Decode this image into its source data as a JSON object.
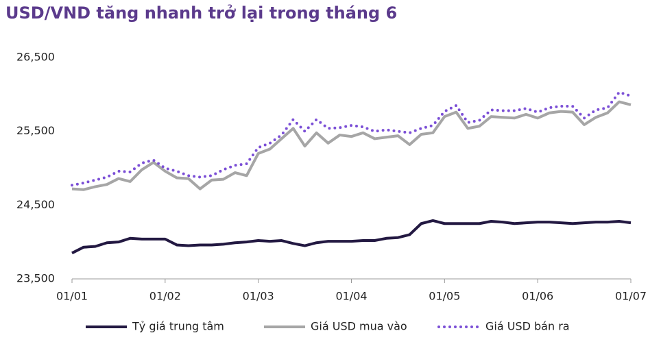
{
  "chart_data": {
    "type": "line",
    "title": "USD/VND tăng nhanh trở lại trong tháng 6",
    "categories": [
      "01/01",
      null,
      null,
      null,
      null,
      null,
      null,
      null,
      "01/02",
      null,
      null,
      null,
      null,
      null,
      null,
      null,
      "01/03",
      null,
      null,
      null,
      null,
      null,
      null,
      null,
      "01/04",
      null,
      null,
      null,
      null,
      null,
      null,
      null,
      "01/05",
      null,
      null,
      null,
      null,
      null,
      null,
      null,
      "01/06",
      null,
      null,
      null,
      null,
      null,
      null,
      null,
      "01/07"
    ],
    "series": [
      {
        "name": "Tỷ giá trung tâm",
        "color": "#231942",
        "style": "solid",
        "values": [
          23850,
          23930,
          23940,
          23990,
          24000,
          24050,
          24040,
          24040,
          24040,
          23960,
          23950,
          23960,
          23960,
          23970,
          23990,
          24000,
          24020,
          24010,
          24020,
          23980,
          23950,
          23990,
          24010,
          24010,
          24010,
          24020,
          24020,
          24050,
          24060,
          24100,
          24250,
          24290,
          24250,
          24250,
          24250,
          24250,
          24280,
          24270,
          24250,
          24260,
          24270,
          24270,
          24260,
          24250,
          24260,
          24270,
          24270,
          24280,
          24260
        ]
      },
      {
        "name": "Giá USD mua vào",
        "color": "#a6a6a6",
        "style": "solid",
        "values": [
          24720,
          24710,
          24750,
          24780,
          24860,
          24820,
          24980,
          25080,
          24960,
          24870,
          24860,
          24720,
          24840,
          24850,
          24940,
          24900,
          25200,
          25260,
          25400,
          25540,
          25300,
          25480,
          25340,
          25450,
          25430,
          25480,
          25400,
          25420,
          25440,
          25320,
          25460,
          25480,
          25700,
          25760,
          25540,
          25570,
          25700,
          25690,
          25680,
          25730,
          25680,
          25750,
          25770,
          25760,
          25590,
          25690,
          25750,
          25900,
          25860
        ]
      },
      {
        "name": "Giá USD bán ra",
        "color": "#7b4fd6",
        "style": "dotted",
        "values": [
          24770,
          24800,
          24840,
          24880,
          24960,
          24950,
          25070,
          25110,
          25000,
          24960,
          24900,
          24880,
          24900,
          24980,
          25040,
          25060,
          25280,
          25340,
          25450,
          25660,
          25500,
          25660,
          25540,
          25550,
          25580,
          25560,
          25500,
          25520,
          25500,
          25480,
          25540,
          25580,
          25770,
          25850,
          25620,
          25650,
          25790,
          25780,
          25780,
          25810,
          25760,
          25820,
          25840,
          25840,
          25680,
          25790,
          25820,
          26030,
          25980
        ]
      }
    ],
    "ylim": [
      23500,
      26500
    ],
    "yticks": [
      {
        "value": 23500,
        "label": "23,500"
      },
      {
        "value": 24500,
        "label": "24,500"
      },
      {
        "value": 25500,
        "label": "25,500"
      },
      {
        "value": 26500,
        "label": "26,500"
      }
    ],
    "grid": false
  }
}
